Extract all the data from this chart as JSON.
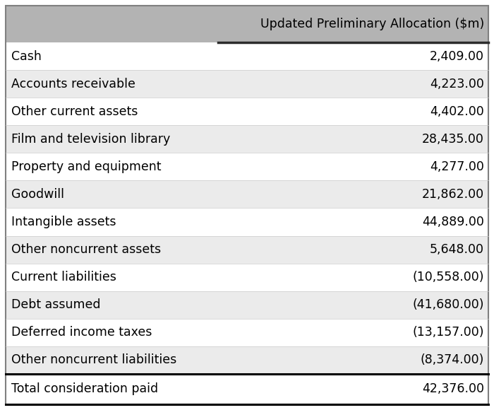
{
  "header_label": "Updated Preliminary Allocation ($m)",
  "rows": [
    {
      "label": "Cash",
      "value": "2,409.00",
      "shaded": false
    },
    {
      "label": "Accounts receivable",
      "value": "4,223.00",
      "shaded": true
    },
    {
      "label": "Other current assets",
      "value": "4,402.00",
      "shaded": false
    },
    {
      "label": "Film and television library",
      "value": "28,435.00",
      "shaded": true
    },
    {
      "label": "Property and equipment",
      "value": "4,277.00",
      "shaded": false
    },
    {
      "label": "Goodwill",
      "value": "21,862.00",
      "shaded": true
    },
    {
      "label": "Intangible assets",
      "value": "44,889.00",
      "shaded": false
    },
    {
      "label": "Other noncurrent assets",
      "value": "5,648.00",
      "shaded": true
    },
    {
      "label": "Current liabilities",
      "value": "(10,558.00)",
      "shaded": false
    },
    {
      "label": "Debt assumed",
      "value": "(41,680.00)",
      "shaded": true
    },
    {
      "label": "Deferred income taxes",
      "value": "(13,157.00)",
      "shaded": false
    },
    {
      "label": "Other noncurrent liabilities",
      "value": "(8,374.00)",
      "shaded": true
    }
  ],
  "total_row": {
    "label": "Total consideration paid",
    "value": "42,376.00"
  },
  "header_bg": "#b3b3b3",
  "shaded_bg": "#ebebeb",
  "white_bg": "#ffffff",
  "total_bg": "#ffffff",
  "border_color": "#000000",
  "text_color": "#000000",
  "outer_border_color": "#808080",
  "figure_bg": "#ffffff",
  "header_thick_line_color": "#2c2c2c",
  "font_size": 12.5,
  "header_font_size": 12.5,
  "fig_width": 7.0,
  "fig_height": 5.8,
  "dpi": 100
}
